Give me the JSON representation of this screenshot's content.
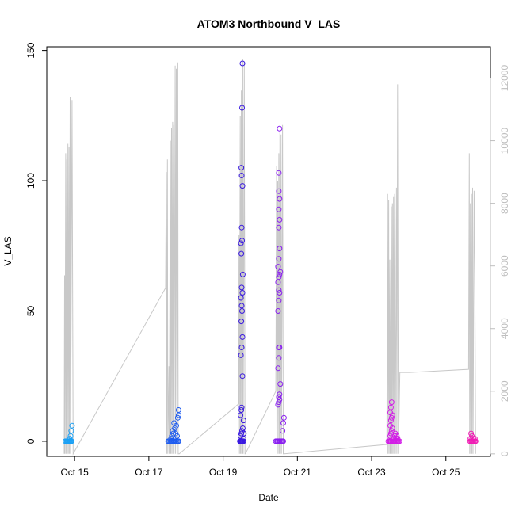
{
  "chart_data": {
    "type": "scatter",
    "title": "ATOM3 Northbound V_LAS",
    "xlabel": "Date",
    "ylabel": "V_LAS",
    "x_unit": "day of October",
    "xlim": [
      14.25,
      26.2
    ],
    "ylim": [
      -5.8,
      151.4
    ],
    "y2lim": [
      -80,
      13000
    ],
    "x_ticks": [
      {
        "value": 15,
        "label": "Oct 15"
      },
      {
        "value": 17,
        "label": "Oct 17"
      },
      {
        "value": 19,
        "label": "Oct 19"
      },
      {
        "value": 21,
        "label": "Oct 21"
      },
      {
        "value": 23,
        "label": "Oct 23"
      },
      {
        "value": 25,
        "label": "Oct 25"
      }
    ],
    "y_ticks": [
      0,
      50,
      100,
      150
    ],
    "y2_ticks": [
      0,
      2000,
      4000,
      6000,
      8000,
      10000,
      12000
    ],
    "grid": false,
    "legend": "none",
    "colors": {
      "right_axis": "#bebebe",
      "line": "#c8c8c8"
    },
    "line_series": {
      "axis": "right",
      "color": "#c8c8c8",
      "points": [
        [
          14.72,
          0
        ],
        [
          14.73,
          5700
        ],
        [
          14.74,
          0
        ],
        [
          14.76,
          9600
        ],
        [
          14.77,
          0
        ],
        [
          14.79,
          9400
        ],
        [
          14.8,
          0
        ],
        [
          14.82,
          9900
        ],
        [
          14.83,
          0
        ],
        [
          14.85,
          9800
        ],
        [
          14.86,
          0
        ],
        [
          14.88,
          11400
        ],
        [
          14.89,
          0
        ],
        [
          14.93,
          11300
        ],
        [
          14.96,
          0
        ],
        [
          17.45,
          5300
        ],
        [
          17.47,
          9000
        ],
        [
          17.48,
          0
        ],
        [
          17.5,
          9400
        ],
        [
          17.51,
          0
        ],
        [
          17.54,
          2800
        ],
        [
          17.55,
          0
        ],
        [
          17.58,
          10000
        ],
        [
          17.59,
          0
        ],
        [
          17.61,
          10400
        ],
        [
          17.62,
          0
        ],
        [
          17.64,
          10600
        ],
        [
          17.65,
          0
        ],
        [
          17.67,
          10500
        ],
        [
          17.68,
          0
        ],
        [
          17.71,
          12400
        ],
        [
          17.72,
          0
        ],
        [
          17.74,
          12300
        ],
        [
          17.76,
          0
        ],
        [
          17.78,
          12500
        ],
        [
          17.79,
          0
        ],
        [
          17.82,
          0
        ],
        [
          19.42,
          1600
        ],
        [
          19.43,
          7000
        ],
        [
          19.44,
          0
        ],
        [
          19.46,
          10800
        ],
        [
          19.47,
          0
        ],
        [
          19.49,
          11600
        ],
        [
          19.5,
          0
        ],
        [
          19.51,
          12000
        ],
        [
          19.52,
          0
        ],
        [
          19.53,
          12600
        ],
        [
          19.54,
          0
        ],
        [
          19.57,
          12500
        ],
        [
          19.59,
          0
        ],
        [
          19.6,
          0
        ],
        [
          20.42,
          2000
        ],
        [
          20.44,
          9200
        ],
        [
          20.45,
          0
        ],
        [
          20.47,
          8700
        ],
        [
          20.48,
          0
        ],
        [
          20.5,
          9600
        ],
        [
          20.51,
          0
        ],
        [
          20.53,
          10300
        ],
        [
          20.54,
          0
        ],
        [
          20.56,
          10200
        ],
        [
          20.57,
          0
        ],
        [
          20.6,
          10500
        ],
        [
          20.62,
          0
        ],
        [
          20.65,
          0
        ],
        [
          23.41,
          300
        ],
        [
          23.43,
          8300
        ],
        [
          23.44,
          0
        ],
        [
          23.46,
          8100
        ],
        [
          23.47,
          0
        ],
        [
          23.49,
          6200
        ],
        [
          23.5,
          0
        ],
        [
          23.53,
          7900
        ],
        [
          23.54,
          0
        ],
        [
          23.56,
          8000
        ],
        [
          23.57,
          0
        ],
        [
          23.59,
          8200
        ],
        [
          23.6,
          0
        ],
        [
          23.62,
          8300
        ],
        [
          23.64,
          0
        ],
        [
          23.67,
          8500
        ],
        [
          23.68,
          0
        ],
        [
          23.7,
          11800
        ],
        [
          23.72,
          0
        ],
        [
          23.76,
          2600
        ],
        [
          24.03,
          2600
        ],
        [
          25.61,
          2700
        ],
        [
          25.63,
          9600
        ],
        [
          25.64,
          0
        ],
        [
          25.66,
          8000
        ],
        [
          25.67,
          0
        ],
        [
          25.69,
          8300
        ],
        [
          25.7,
          0
        ],
        [
          25.72,
          8500
        ],
        [
          25.73,
          0
        ],
        [
          25.76,
          8400
        ],
        [
          25.78,
          5800
        ],
        [
          25.8,
          0
        ]
      ]
    },
    "scatter_series": [
      {
        "x": [
          14.75,
          14.78,
          14.8,
          14.82,
          14.84,
          14.86,
          14.88,
          14.9,
          14.92,
          14.87,
          14.89,
          14.91,
          14.93
        ],
        "y": [
          0,
          0,
          0,
          0,
          0,
          0,
          0,
          0,
          0,
          1,
          2,
          4,
          6
        ],
        "color": "#1aa0f5"
      },
      {
        "x": [
          17.52,
          17.55,
          17.58,
          17.6,
          17.62,
          17.65,
          17.68,
          17.7,
          17.72,
          17.75,
          17.78,
          17.8,
          17.62,
          17.66,
          17.7,
          17.74,
          17.78,
          17.8,
          17.6,
          17.64,
          17.68,
          17.72,
          17.76,
          17.8
        ],
        "y": [
          0,
          0,
          0,
          0,
          0,
          0,
          0,
          0,
          0,
          0,
          0,
          0,
          2,
          3,
          5,
          6,
          9,
          12,
          1,
          4,
          7,
          3,
          2,
          10
        ],
        "color": "#1e5cf0"
      },
      {
        "x": [
          19.45,
          19.46,
          19.47,
          19.48,
          19.49,
          19.5,
          19.51,
          19.52,
          19.53,
          19.55,
          19.47,
          19.49,
          19.51,
          19.53,
          19.55,
          19.47,
          19.49,
          19.5,
          19.52,
          19.48,
          19.5,
          19.52,
          19.49,
          19.51,
          19.5,
          19.48,
          19.52,
          19.5,
          19.53,
          19.49,
          19.51,
          19.48,
          19.5,
          19.52,
          19.5,
          19.49,
          19.51,
          19.52,
          19.55,
          19.56
        ],
        "y": [
          0,
          0,
          0,
          0,
          0,
          0,
          0,
          0,
          0,
          0,
          2,
          3,
          4,
          5,
          8,
          10,
          12,
          13,
          25,
          33,
          36,
          40,
          46,
          50,
          52,
          55,
          57,
          59,
          64,
          72,
          77,
          76,
          82,
          98,
          102,
          105,
          128,
          145,
          1,
          3
        ],
        "color": "#3a1ae0"
      },
      {
        "x": [
          20.42,
          20.45,
          20.47,
          20.5,
          20.52,
          20.55,
          20.58,
          20.6,
          20.62,
          20.48,
          20.5,
          20.52,
          20.5,
          20.52,
          20.54,
          20.48,
          20.5,
          20.5,
          20.52,
          20.48,
          20.5,
          20.52,
          20.5,
          20.48,
          20.5,
          20.52,
          20.54,
          20.48,
          20.5,
          20.52,
          20.5,
          20.52,
          20.5,
          20.52,
          20.5,
          20.5,
          20.52,
          20.6,
          20.62,
          20.64
        ],
        "y": [
          0,
          0,
          0,
          0,
          0,
          0,
          0,
          0,
          0,
          14,
          15,
          16,
          17,
          18,
          22,
          28,
          32,
          36,
          36,
          50,
          54,
          57,
          58,
          61,
          63,
          64,
          65,
          67,
          70,
          74,
          82,
          85,
          89,
          93,
          96,
          103,
          120,
          4,
          7,
          9
        ],
        "color": "#8a1ef0"
      },
      {
        "x": [
          23.45,
          23.48,
          23.5,
          23.52,
          23.55,
          23.58,
          23.6,
          23.62,
          23.65,
          23.68,
          23.7,
          23.72,
          23.75,
          23.5,
          23.52,
          23.54,
          23.56,
          23.5,
          23.52,
          23.54,
          23.56,
          23.5,
          23.52,
          23.54,
          23.6,
          23.62,
          23.64,
          23.66,
          23.68,
          23.7
        ],
        "y": [
          0,
          0,
          0,
          0,
          0,
          0,
          0,
          0,
          0,
          0,
          0,
          0,
          0,
          2,
          3,
          4,
          5,
          6,
          8,
          9,
          10,
          11,
          13,
          15,
          1,
          2,
          3,
          1,
          2,
          1
        ],
        "color": "#d21ee6"
      },
      {
        "x": [
          25.65,
          25.68,
          25.7,
          25.72,
          25.75,
          25.78,
          25.8,
          25.66,
          25.7,
          25.74,
          25.78,
          25.68
        ],
        "y": [
          0,
          0,
          0,
          0,
          0,
          0,
          0,
          1,
          2,
          1,
          1,
          3
        ],
        "color": "#f01eb4"
      }
    ]
  }
}
